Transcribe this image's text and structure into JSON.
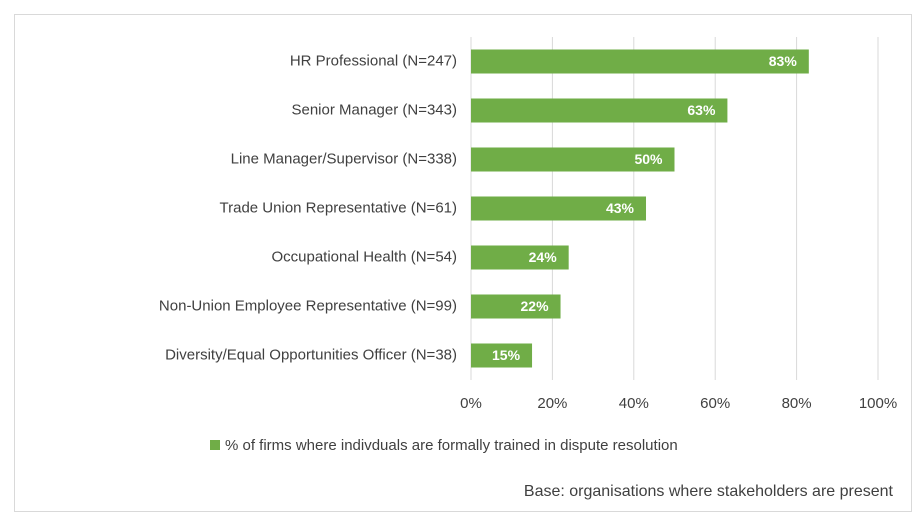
{
  "chart_data": {
    "type": "bar",
    "orientation": "horizontal",
    "categories": [
      "HR Professional (N=247)",
      "Senior Manager (N=343)",
      "Line Manager/Supervisor (N=338)",
      "Trade Union Representative (N=61)",
      "Occupational Health (N=54)",
      "Non-Union Employee Representative (N=99)",
      "Diversity/Equal Opportunities Officer (N=38)"
    ],
    "series": [
      {
        "name": "% of firms where indivduals are formally trained in dispute resolution",
        "color": "#70ad47",
        "values": [
          83,
          63,
          50,
          43,
          24,
          22,
          15
        ],
        "value_labels": [
          "83%",
          "63%",
          "50%",
          "43%",
          "24%",
          "22%",
          "15%"
        ]
      }
    ],
    "xlim": [
      0,
      100
    ],
    "xticks": [
      {
        "value": 0,
        "label": "0%"
      },
      {
        "value": 20,
        "label": "20%"
      },
      {
        "value": 40,
        "label": "40%"
      },
      {
        "value": 60,
        "label": "60%"
      },
      {
        "value": 80,
        "label": "80%"
      },
      {
        "value": 100,
        "label": "100%"
      }
    ],
    "grid": true,
    "legend": "bottom",
    "annotation": "Base: organisations where stakeholders are present"
  }
}
